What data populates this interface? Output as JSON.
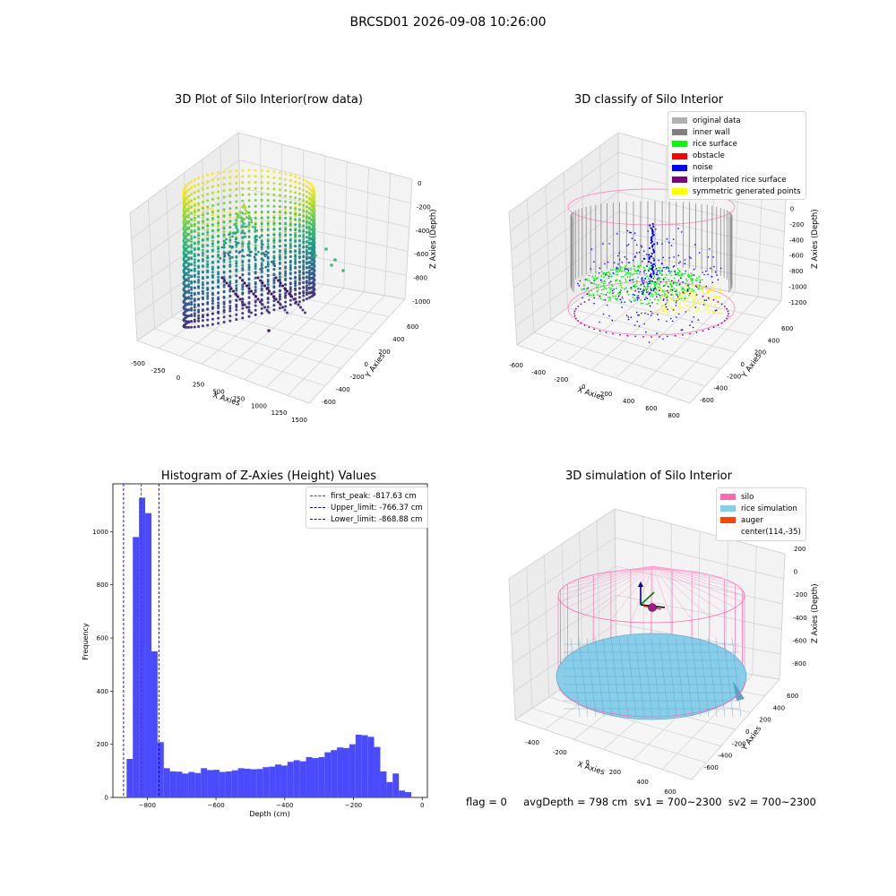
{
  "figure": {
    "suptitle": "BRCSD01 2026-09-08 10:26:00",
    "status_line": "flag = 0     avgDepth = 798 cm  sv1 = 700~2300  sv2 = 700~2300"
  },
  "chart_data": [
    {
      "type": "scatter",
      "title": "3D Plot of Silo Interior(row data)",
      "xlabel": "X Axies",
      "ylabel": "Y Axies",
      "zlabel": "Z Axies (Depth)",
      "x_ticks": [
        "-500",
        "-250",
        "0",
        "250",
        "500",
        "750",
        "1000",
        "1250",
        "1500"
      ],
      "y_ticks": [
        "-600",
        "-400",
        "-200",
        "0",
        "200",
        "400",
        "600"
      ],
      "z_ticks": [
        "-1000",
        "-800",
        "-600",
        "-400",
        "-200",
        "0"
      ],
      "xlim": [
        -600,
        1500
      ],
      "ylim": [
        -650,
        650
      ],
      "zlim": [
        -1050,
        50
      ],
      "colormap": "viridis",
      "grid": true
    },
    {
      "type": "scatter",
      "title": "3D classify of Silo Interior",
      "xlabel": "X Axies",
      "ylabel": "Y Axies",
      "zlabel": "Z Axies (Depth)",
      "x_ticks": [
        "-600",
        "-400",
        "-200",
        "0",
        "200",
        "400",
        "600",
        "800"
      ],
      "y_ticks": [
        "-600",
        "-400",
        "-200",
        "0",
        "200",
        "400",
        "600"
      ],
      "z_ticks": [
        "-1200",
        "-1000",
        "-800",
        "-600",
        "-400",
        "-200",
        "0",
        "200"
      ],
      "grid": true,
      "legend_position": "top-right",
      "legend": [
        {
          "label": "original data",
          "color": "#b0b0b0"
        },
        {
          "label": "inner wall",
          "color": "#808080"
        },
        {
          "label": "rice surface",
          "color": "#00ff00"
        },
        {
          "label": "obstacle",
          "color": "#ff0000"
        },
        {
          "label": "noise",
          "color": "#0000ff"
        },
        {
          "label": "interpolated rice surface",
          "color": "#800080"
        },
        {
          "label": "symmetric generated points",
          "color": "#ffff00"
        }
      ]
    },
    {
      "type": "bar",
      "title": "Histogram of Z-Axies (Height) Values",
      "xlabel": "Depth (cm)",
      "ylabel": "Frequency",
      "bar_color": "#4a4aff",
      "bin_width": 18,
      "bins": [
        {
          "x0": -860,
          "count": 145
        },
        {
          "x0": -842,
          "count": 980
        },
        {
          "x0": -824,
          "count": 1128
        },
        {
          "x0": -806,
          "count": 1070
        },
        {
          "x0": -788,
          "count": 550
        },
        {
          "x0": -770,
          "count": 208
        },
        {
          "x0": -752,
          "count": 110
        },
        {
          "x0": -734,
          "count": 98
        },
        {
          "x0": -716,
          "count": 97
        },
        {
          "x0": -698,
          "count": 90
        },
        {
          "x0": -680,
          "count": 96
        },
        {
          "x0": -662,
          "count": 92
        },
        {
          "x0": -644,
          "count": 110
        },
        {
          "x0": -626,
          "count": 103
        },
        {
          "x0": -608,
          "count": 104
        },
        {
          "x0": -590,
          "count": 96
        },
        {
          "x0": -572,
          "count": 98
        },
        {
          "x0": -554,
          "count": 102
        },
        {
          "x0": -536,
          "count": 110
        },
        {
          "x0": -518,
          "count": 108
        },
        {
          "x0": -500,
          "count": 106
        },
        {
          "x0": -482,
          "count": 107
        },
        {
          "x0": -464,
          "count": 114
        },
        {
          "x0": -446,
          "count": 116
        },
        {
          "x0": -428,
          "count": 124
        },
        {
          "x0": -410,
          "count": 120
        },
        {
          "x0": -392,
          "count": 134
        },
        {
          "x0": -374,
          "count": 140
        },
        {
          "x0": -356,
          "count": 136
        },
        {
          "x0": -338,
          "count": 152
        },
        {
          "x0": -320,
          "count": 148
        },
        {
          "x0": -302,
          "count": 152
        },
        {
          "x0": -284,
          "count": 170
        },
        {
          "x0": -266,
          "count": 178
        },
        {
          "x0": -248,
          "count": 188
        },
        {
          "x0": -230,
          "count": 186
        },
        {
          "x0": -212,
          "count": 200
        },
        {
          "x0": -194,
          "count": 236
        },
        {
          "x0": -176,
          "count": 234
        },
        {
          "x0": -158,
          "count": 228
        },
        {
          "x0": -140,
          "count": 190
        },
        {
          "x0": -122,
          "count": 98
        },
        {
          "x0": -104,
          "count": 58
        },
        {
          "x0": -86,
          "count": 90
        },
        {
          "x0": -68,
          "count": 26
        },
        {
          "x0": -50,
          "count": 20
        }
      ],
      "x_ticks": [
        -800,
        -600,
        -400,
        -200,
        0
      ],
      "y_ticks": [
        0,
        200,
        400,
        600,
        800,
        1000
      ],
      "xlim": [
        -900,
        15
      ],
      "ylim": [
        0,
        1180
      ],
      "vlines": [
        {
          "label": "first_peak: -817.63 cm",
          "x": -817.63,
          "color": "#ff0000"
        },
        {
          "label": "Upper_limit: -766.37 cm",
          "x": -766.37,
          "color": "#000080"
        },
        {
          "label": "Lower_limit: -868.88 cm",
          "x": -868.88,
          "color": "#0000ff"
        }
      ],
      "legend_position": "top-right"
    },
    {
      "type": "scatter",
      "title": "3D simulation of Silo Interior",
      "xlabel": "X Axies",
      "ylabel": "Y Axies",
      "zlabel": "Z Axies (Depth)",
      "x_ticks": [
        "-400",
        "-200",
        "0",
        "200",
        "400",
        "600"
      ],
      "y_ticks": [
        "-600",
        "-400",
        "-200",
        "0",
        "200",
        "400",
        "600"
      ],
      "z_ticks": [
        "-800",
        "-600",
        "-400",
        "-200",
        "0",
        "200"
      ],
      "grid": true,
      "legend_position": "top-right",
      "legend": [
        {
          "label": "silo",
          "color": "#ff69b4"
        },
        {
          "label": "rice simulation",
          "color": "#87ceeb"
        },
        {
          "label": "auger",
          "color": "#ff4500"
        },
        {
          "label": "center(114,-35)",
          "color": ""
        }
      ]
    }
  ]
}
